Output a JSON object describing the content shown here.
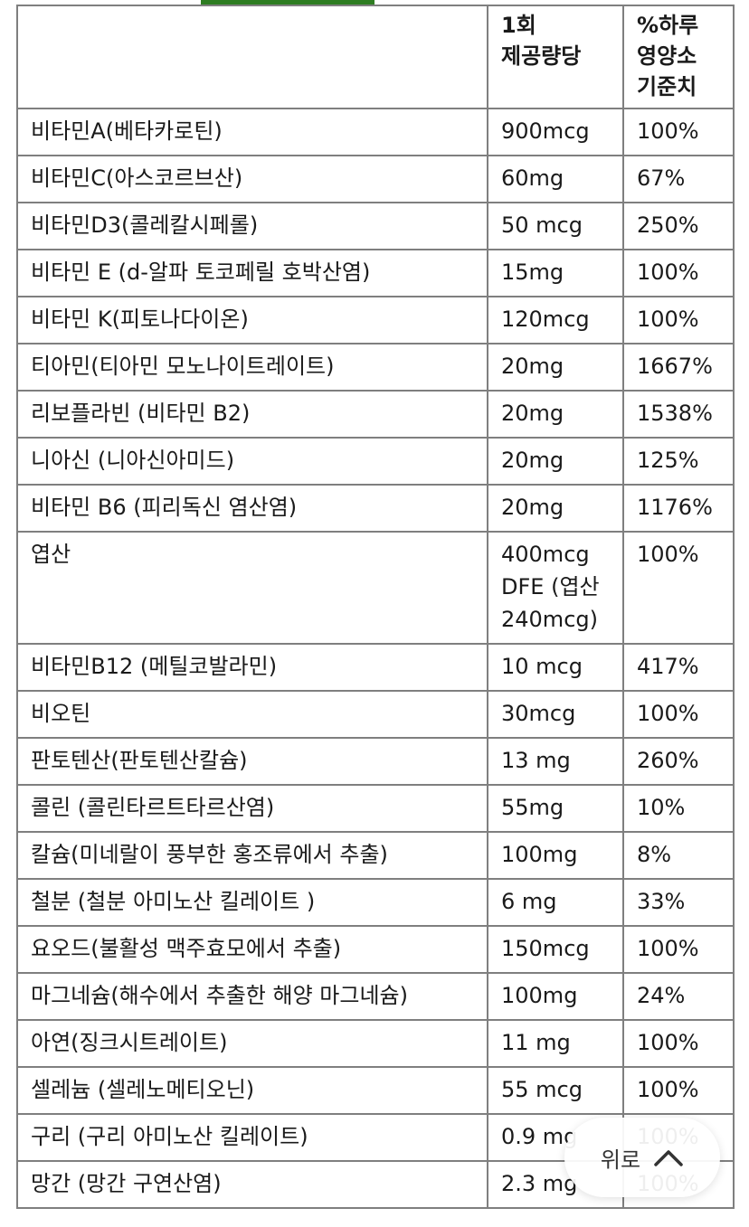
{
  "table": {
    "headers": [
      "",
      "1회 제공량당",
      "%하루 영양소 기준치"
    ],
    "rows": [
      [
        "비타민A(베타카로틴)",
        "900mcg",
        "100%"
      ],
      [
        "비타민C(아스코르브산)",
        "60mg",
        "67%"
      ],
      [
        "비타민D3(콜레칼시페롤)",
        "50 mcg",
        "250%"
      ],
      [
        "비타민 E (d-알파 토코페릴 호박산염)",
        "15mg",
        "100%"
      ],
      [
        "비타민 K(피토나다이온)",
        "120mcg",
        "100%"
      ],
      [
        "티아민(티아민 모노나이트레이트)",
        "20mg",
        "1667%"
      ],
      [
        "리보플라빈 (비타민 B2)",
        "20mg",
        "1538%"
      ],
      [
        "니아신 (니아신아미드)",
        "20mg",
        "125%"
      ],
      [
        "비타민 B6 (피리독신 염산염)",
        "20mg",
        "1176%"
      ],
      [
        "엽산",
        "400mcg DFE (엽산 240mcg)",
        "100%"
      ],
      [
        "비타민B12 (메틸코발라민)",
        "10 mcg",
        "417%"
      ],
      [
        "비오틴",
        "30mcg",
        "100%"
      ],
      [
        "판토텐산(판토텐산칼슘)",
        "13 mg",
        "260%"
      ],
      [
        "콜린 (콜린타르트타르산염)",
        "55mg",
        "10%"
      ],
      [
        "칼슘(미네랄이 풍부한 홍조류에서 추출)",
        "100mg",
        "8%"
      ],
      [
        "철분 (철분 아미노산 킬레이트 )",
        "6 mg",
        "33%"
      ],
      [
        "요오드(불활성 맥주효모에서 추출)",
        "150mcg",
        "100%"
      ],
      [
        "마그네슘(해수에서 추출한 해양 마그네슘)",
        "100mg",
        "24%"
      ],
      [
        "아연(징크시트레이트)",
        "11 mg",
        "100%"
      ],
      [
        "셀레늄 (셀레노메티오닌)",
        "55 mcg",
        "100%"
      ],
      [
        "구리 (구리 아미노산 킬레이트)",
        "0.9 mg",
        "100%"
      ],
      [
        "망간 (망간 구연산염)",
        "2.3 mg",
        "100%"
      ]
    ]
  },
  "scroll_top": {
    "label": "위로",
    "icon": "chevron-up-icon"
  },
  "colors": {
    "accent": "#2e7d22",
    "border": "#7f7f7f"
  }
}
